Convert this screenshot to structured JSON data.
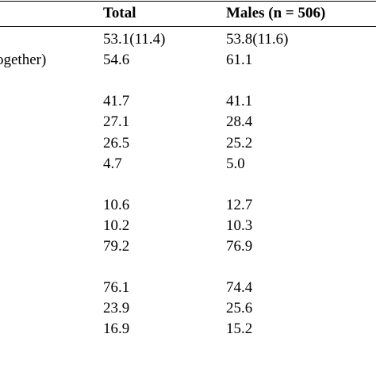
{
  "header": {
    "total": "Total",
    "males": "Males (n = 506)"
  },
  "rows": [
    {
      "label": "",
      "total": "53.1(11.4)",
      "males": "53.8(11.6)"
    },
    {
      "label": "ogether)",
      "total": "54.6",
      "males": "61.1"
    },
    {
      "label": "",
      "total": "",
      "males": ""
    },
    {
      "label": "",
      "total": "41.7",
      "males": "41.1"
    },
    {
      "label": "",
      "total": "27.1",
      "males": "28.4"
    },
    {
      "label": "",
      "total": "26.5",
      "males": "25.2"
    },
    {
      "label": "",
      "total": "4.7",
      "males": "5.0"
    },
    {
      "label": "",
      "total": "",
      "males": ""
    },
    {
      "label": "",
      "total": "10.6",
      "males": "12.7"
    },
    {
      "label": "",
      "total": "10.2",
      "males": "10.3"
    },
    {
      "label": "",
      "total": "79.2",
      "males": "76.9"
    },
    {
      "label": "",
      "total": "",
      "males": ""
    },
    {
      "label": "",
      "total": "76.1",
      "males": "74.4"
    },
    {
      "label": "",
      "total": "23.9",
      "males": "25.6"
    },
    {
      "label": "",
      "total": "16.9",
      "males": "15.2"
    }
  ]
}
